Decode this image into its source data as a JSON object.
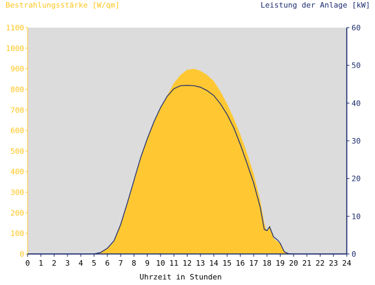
{
  "colors": {
    "background": "#ffffff",
    "plot_background": "#dcdcdc",
    "irradiance": "#ffc832",
    "irradiance_text": "#ffc61e",
    "power": "#1c2c6e",
    "axis": "#1c2c6e"
  },
  "chart_data": {
    "type": "area",
    "title_left": "Bestrahlungsstärke [W/qm]",
    "title_right": "Leistung der Anlage [kW]",
    "xlabel": "Uhrzeit in Stunden",
    "xlim": [
      0,
      24
    ],
    "x_ticks": [
      "0",
      "1",
      "2",
      "3",
      "4",
      "5",
      "6",
      "7",
      "8",
      "9",
      "10",
      "11",
      "12",
      "13",
      "14",
      "15",
      "16",
      "17",
      "18",
      "19",
      "20",
      "21",
      "22",
      "23",
      "24"
    ],
    "y_left": {
      "lim": [
        0,
        1100
      ],
      "ticks": [
        "0",
        "100",
        "200",
        "300",
        "400",
        "500",
        "600",
        "700",
        "800",
        "900",
        "1000",
        "1100"
      ]
    },
    "y_right": {
      "lim": [
        0,
        60
      ],
      "ticks": [
        "0",
        "10",
        "20",
        "30",
        "40",
        "50",
        "60"
      ]
    },
    "grid": false,
    "series": [
      {
        "name": "Bestrahlungsstärke [W/qm]",
        "type": "area",
        "axis": "left",
        "x": [
          0,
          5,
          5.5,
          6,
          6.5,
          7,
          7.5,
          8,
          8.5,
          9,
          9.5,
          10,
          10.5,
          11,
          11.5,
          12,
          12.5,
          13,
          13.5,
          14,
          14.5,
          15,
          15.5,
          16,
          16.5,
          17,
          17.5,
          17.8,
          18,
          18.2,
          18.5,
          18.8,
          19,
          19.3,
          19.6,
          20,
          24
        ],
        "y": [
          0,
          0,
          5,
          25,
          60,
          140,
          240,
          350,
          460,
          560,
          640,
          710,
          770,
          830,
          870,
          895,
          900,
          890,
          870,
          840,
          790,
          730,
          660,
          580,
          490,
          390,
          260,
          150,
          110,
          140,
          75,
          60,
          50,
          10,
          2,
          0,
          0
        ]
      },
      {
        "name": "Leistung der Anlage [kW]",
        "type": "line",
        "axis": "right",
        "x": [
          0,
          5,
          5.5,
          6,
          6.5,
          7,
          7.5,
          8,
          8.5,
          9,
          9.5,
          10,
          10.5,
          11,
          11.5,
          12,
          12.5,
          13,
          13.5,
          14,
          14.5,
          15,
          15.5,
          16,
          16.5,
          17,
          17.5,
          17.8,
          18,
          18.2,
          18.5,
          18.8,
          19,
          19.3,
          19.6,
          20,
          24
        ],
        "y": [
          0,
          0,
          0.4,
          1.5,
          3.5,
          7.8,
          13.5,
          19.5,
          25.5,
          30.5,
          35,
          38.8,
          41.8,
          43.8,
          44.6,
          44.7,
          44.6,
          44.2,
          43.3,
          42,
          39.8,
          37,
          33.5,
          29,
          24,
          18.8,
          12.3,
          6.5,
          6.2,
          7.2,
          4.5,
          3.7,
          2.8,
          0.6,
          0.1,
          0,
          0
        ]
      }
    ]
  }
}
